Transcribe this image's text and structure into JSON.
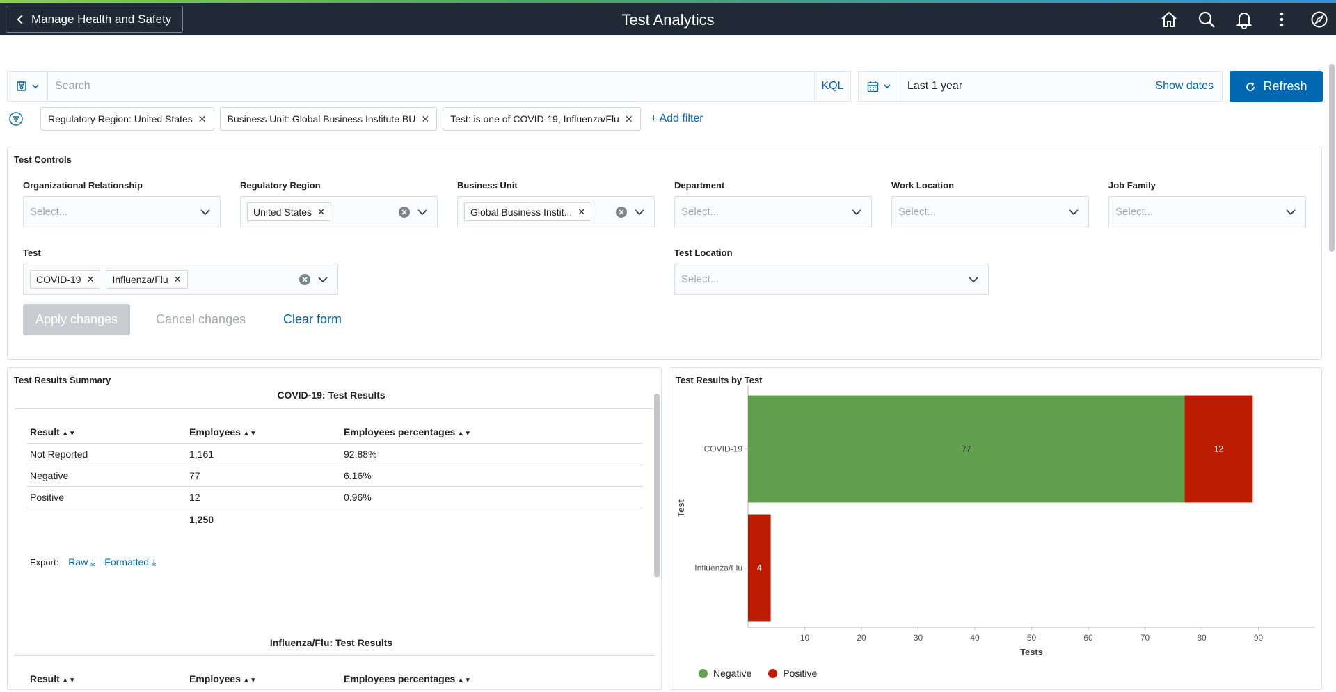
{
  "header": {
    "back_label": "Manage Health and Safety",
    "title": "Test Analytics",
    "icons": [
      "home-icon",
      "search-icon",
      "bell-icon",
      "more-icon",
      "compass-icon"
    ]
  },
  "query": {
    "search_placeholder": "Search",
    "kql_label": "KQL",
    "date_range": "Last 1 year",
    "show_dates_label": "Show dates",
    "refresh_label": "Refresh"
  },
  "filters": {
    "pills": [
      "Regulatory Region: United States",
      "Business Unit: Global Business Institute BU",
      "Test: is one of COVID-19, Influenza/Flu"
    ],
    "add_label": "+ Add filter"
  },
  "controls": {
    "title": "Test Controls",
    "org_rel": {
      "label": "Organizational Relationship",
      "placeholder": "Select..."
    },
    "reg_region": {
      "label": "Regulatory Region",
      "chip": "United States"
    },
    "bus_unit": {
      "label": "Business Unit",
      "chip": "Global Business Instit..."
    },
    "department": {
      "label": "Department",
      "placeholder": "Select..."
    },
    "work_location": {
      "label": "Work Location",
      "placeholder": "Select..."
    },
    "job_family": {
      "label": "Job Family",
      "placeholder": "Select..."
    },
    "test": {
      "label": "Test",
      "chips": [
        "COVID-19",
        "Influenza/Flu"
      ]
    },
    "test_location": {
      "label": "Test Location",
      "placeholder": "Select..."
    },
    "apply_label": "Apply changes",
    "cancel_label": "Cancel changes",
    "clear_label": "Clear form"
  },
  "summary": {
    "title": "Test Results Summary",
    "covid": {
      "title": "COVID-19: Test Results",
      "headers": [
        "Result",
        "Employees",
        "Employees percentages"
      ],
      "rows": [
        [
          "Not Reported",
          "1,161",
          "92.88%"
        ],
        [
          "Negative",
          "77",
          "6.16%"
        ],
        [
          "Positive",
          "12",
          "0.96%"
        ]
      ],
      "total": "1,250"
    },
    "export_label": "Export:",
    "export_raw": "Raw",
    "export_formatted": "Formatted",
    "flu": {
      "title": "Influenza/Flu: Test Results",
      "headers": [
        "Result",
        "Employees",
        "Employees percentages"
      ]
    }
  },
  "by_test": {
    "title": "Test Results by Test"
  },
  "chart_data": {
    "type": "bar",
    "orientation": "horizontal",
    "stacked": true,
    "categories": [
      "COVID-19",
      "Influenza/Flu"
    ],
    "series": [
      {
        "name": "Negative",
        "values": [
          77,
          0
        ],
        "color": "#62a04f"
      },
      {
        "name": "Positive",
        "values": [
          12,
          4
        ],
        "color": "#bd1b00"
      }
    ],
    "xlabel": "Tests",
    "ylabel": "Test",
    "xlim": [
      0,
      100
    ],
    "xticks": [
      10,
      20,
      30,
      40,
      50,
      60,
      70,
      80,
      90
    ],
    "legend": "bottom-left"
  }
}
